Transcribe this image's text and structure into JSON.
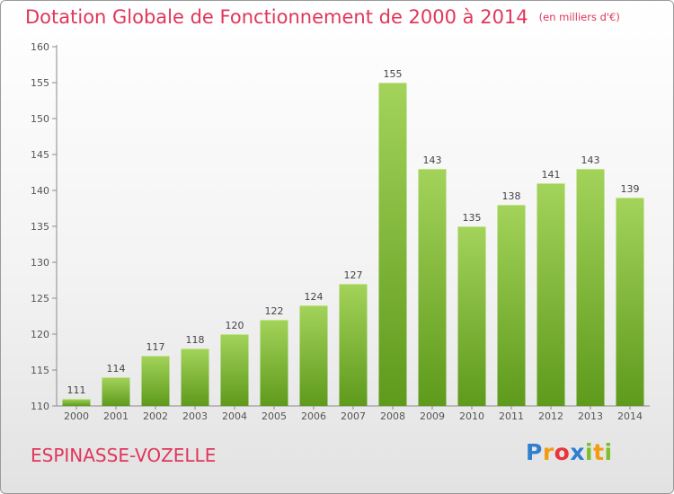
{
  "header": {
    "title": "Dotation Globale de Fonctionnement de 2000 à 2014",
    "unit": "(en milliers d'€)"
  },
  "footer": {
    "city": "ESPINASSE-VOZELLE",
    "logo_letters": [
      "P",
      "r",
      "o",
      "x",
      "i",
      "t",
      "i"
    ],
    "logo_colors": [
      "#2f7fd0",
      "#f39c12",
      "#e8353b",
      "#2f7fd0",
      "#7cbf2b",
      "#f39c12",
      "#7cbf2b"
    ]
  },
  "chart_data": {
    "type": "bar",
    "title": "Dotation Globale de Fonctionnement de 2000 à 2014",
    "subtitle": "(en milliers d'€)",
    "xlabel": "",
    "ylabel": "",
    "categories": [
      "2000",
      "2001",
      "2002",
      "2003",
      "2004",
      "2005",
      "2006",
      "2007",
      "2008",
      "2009",
      "2010",
      "2011",
      "2012",
      "2013",
      "2014"
    ],
    "values": [
      111,
      114,
      117,
      118,
      120,
      122,
      124,
      127,
      155,
      143,
      135,
      138,
      141,
      143,
      139
    ],
    "ylim": [
      110,
      160
    ],
    "yticks": [
      110,
      115,
      120,
      125,
      130,
      135,
      140,
      145,
      150,
      155,
      160
    ],
    "grid": false,
    "bar_color_top": "#a3d35a",
    "bar_color_bottom": "#5e9a1c"
  }
}
